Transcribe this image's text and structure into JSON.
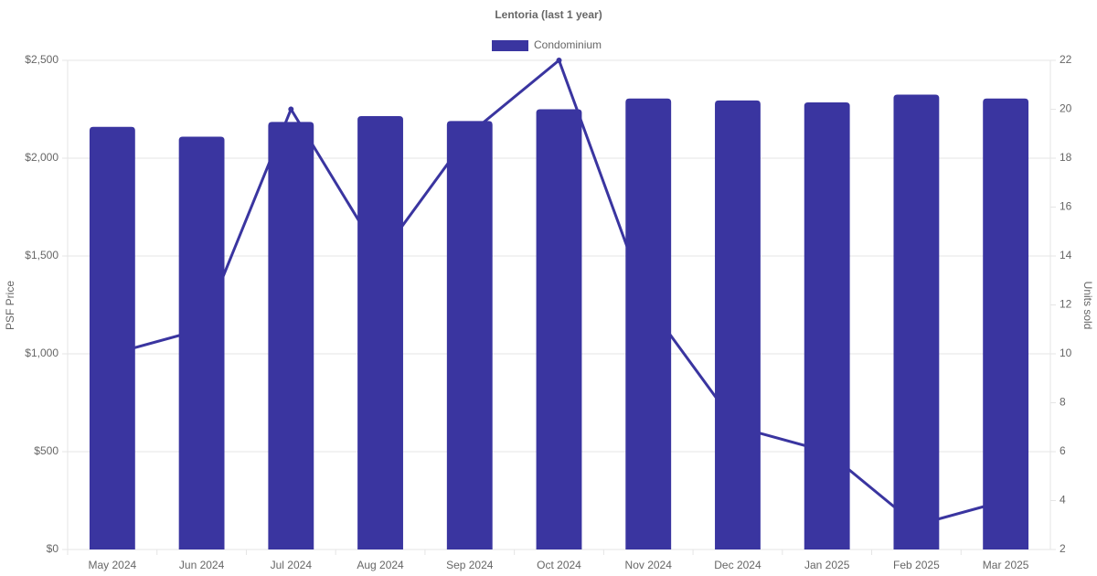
{
  "chart_data": {
    "type": "bar",
    "title": "Lentoria (last 1 year)",
    "categories": [
      "May 2024",
      "Jun 2024",
      "Jul 2024",
      "Aug 2024",
      "Sep 2024",
      "Oct 2024",
      "Nov 2024",
      "Dec 2024",
      "Jan 2025",
      "Feb 2025",
      "Mar 2025"
    ],
    "series": [
      {
        "name": "Condominium",
        "type": "bar",
        "color": "#3a35a0",
        "values": [
          2160,
          2110,
          2185,
          2215,
          2190,
          2250,
          2305,
          2295,
          2285,
          2325,
          2305
        ]
      },
      {
        "type": "line",
        "axis": "y2",
        "color": "#3a35a0",
        "values": [
          10,
          11,
          20,
          14,
          19,
          22,
          12,
          7,
          6,
          3,
          4
        ]
      }
    ],
    "y_label": "PSF Price",
    "y2_label": "Units sold",
    "ylim": [
      0,
      2500
    ],
    "yticks": [
      {
        "value": 0,
        "label": "$0"
      },
      {
        "value": 500,
        "label": "$500"
      },
      {
        "value": 1000,
        "label": "$1,000"
      },
      {
        "value": 1500,
        "label": "$1,500"
      },
      {
        "value": 2000,
        "label": "$2,000"
      },
      {
        "value": 2500,
        "label": "$2,500"
      }
    ],
    "y2lim": [
      2,
      22
    ],
    "y2ticks": [
      2,
      4,
      6,
      8,
      10,
      12,
      14,
      16,
      18,
      20,
      22
    ],
    "grid": true,
    "legend": "top"
  }
}
